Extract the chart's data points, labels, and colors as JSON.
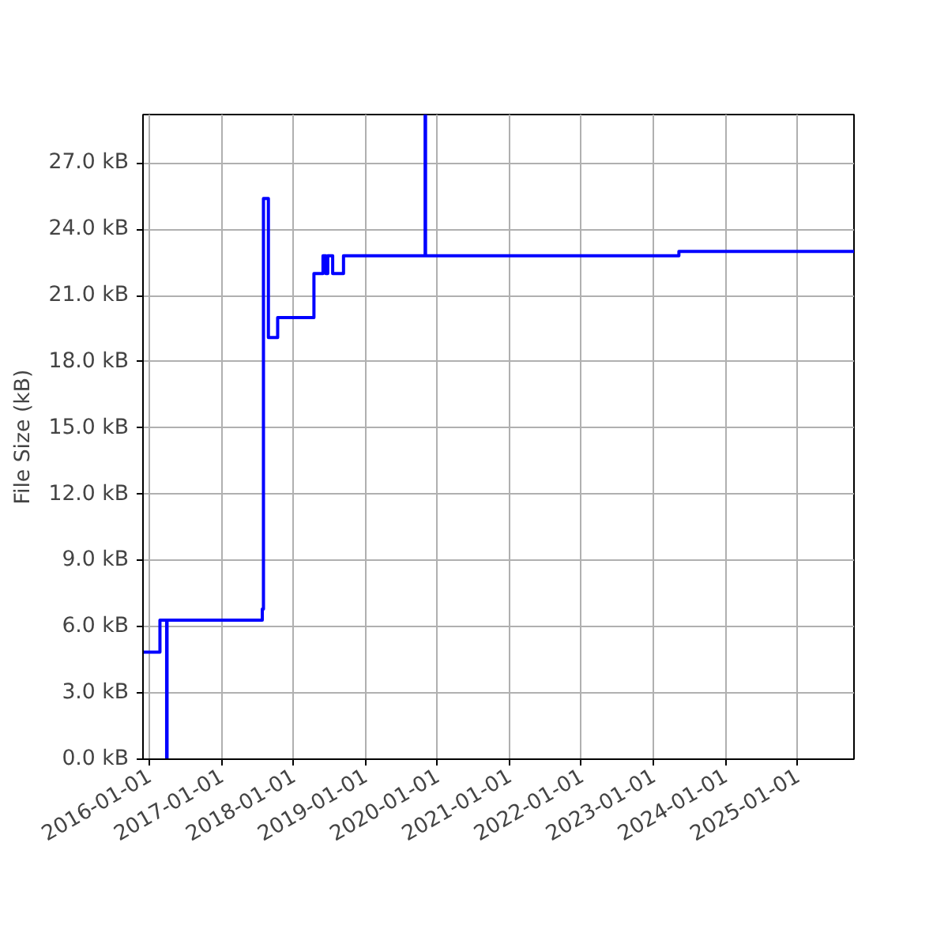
{
  "chart_data": {
    "type": "step",
    "ylabel": "File Size (kB)",
    "x": [
      "2015-12-01",
      "2016-02-25",
      "2016-03-30",
      "2016-04-01",
      "2017-07-28",
      "2017-08-03",
      "2017-08-28",
      "2017-10-14",
      "2018-04-16",
      "2018-06-01",
      "2018-06-15",
      "2018-06-25",
      "2018-07-20",
      "2018-09-13",
      "2019-11-01",
      "2019-11-03",
      "2023-05-11",
      "2025-10-15"
    ],
    "series": [
      {
        "color": "#0000ff",
        "values": [
          4.85,
          6.3,
          0,
          6.3,
          6.8,
          25.4,
          19.1,
          20.0,
          22.0,
          22.8,
          22.0,
          22.8,
          22.0,
          22.8,
          29.2,
          22.8,
          23.0,
          23.0
        ]
      }
    ],
    "xlim": [
      "2015-12-01",
      "2025-10-15"
    ],
    "xticks": [
      "2016-01-01",
      "2017-01-01",
      "2018-01-01",
      "2019-01-01",
      "2020-01-01",
      "2021-01-01",
      "2022-01-01",
      "2023-01-01",
      "2024-01-01",
      "2025-01-01"
    ],
    "ylim": [
      0,
      29.2
    ],
    "yticks": [
      {
        "value": 0,
        "label": "0.0 kB"
      },
      {
        "value": 3,
        "label": "3.0 kB"
      },
      {
        "value": 6,
        "label": "6.0 kB"
      },
      {
        "value": 9,
        "label": "9.0 kB"
      },
      {
        "value": 12,
        "label": "12.0 kB"
      },
      {
        "value": 15,
        "label": "15.0 kB"
      },
      {
        "value": 18,
        "label": "18.0 kB"
      },
      {
        "value": 21,
        "label": "21.0 kB"
      },
      {
        "value": 24,
        "label": "24.0 kB"
      },
      {
        "value": 27,
        "label": "27.0 kB"
      }
    ],
    "grid": true
  }
}
